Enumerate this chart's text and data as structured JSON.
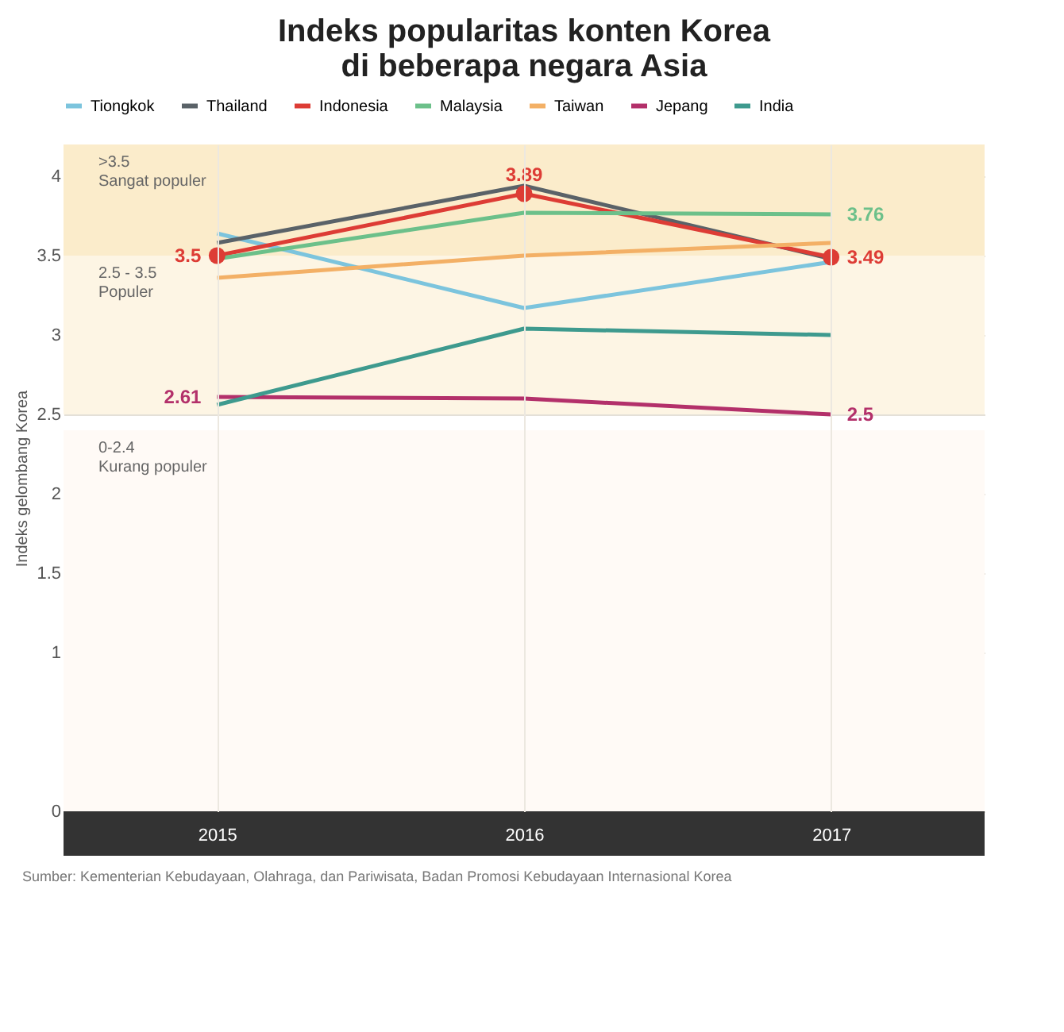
{
  "chart_data": {
    "type": "line",
    "title": "Indeks popularitas konten Korea\ndi beberapa negara Asia",
    "ylabel": "Indeks gelombang Korea",
    "categories": [
      "2015",
      "2016",
      "2017"
    ],
    "series": [
      {
        "name": "Tiongkok",
        "color": "#7cc4dd",
        "values": [
          3.64,
          3.17,
          3.46
        ]
      },
      {
        "name": "Thailand",
        "color": "#5a6268",
        "values": [
          3.58,
          3.94,
          3.48
        ]
      },
      {
        "name": "Indonesia",
        "color": "#dd3c35",
        "values": [
          3.5,
          3.89,
          3.49
        ],
        "marker": "circle",
        "value_labels": [
          "3.5",
          "3.89",
          "3.49"
        ]
      },
      {
        "name": "Malaysia",
        "color": "#6cc08a",
        "values": [
          3.48,
          3.77,
          3.76
        ],
        "value_labels": [
          null,
          null,
          "3.76"
        ]
      },
      {
        "name": "Taiwan",
        "color": "#f3b066",
        "values": [
          3.36,
          3.5,
          3.58
        ]
      },
      {
        "name": "Jepang",
        "color": "#b3306a",
        "values": [
          2.61,
          2.6,
          2.5
        ],
        "value_labels": [
          "2.61",
          null,
          "2.5"
        ]
      },
      {
        "name": "India",
        "color": "#3e9a8e",
        "values": [
          2.56,
          3.04,
          3.0
        ]
      }
    ],
    "ylim": [
      0,
      4.2
    ],
    "yticks": [
      0,
      1,
      1.5,
      2,
      2.5,
      3,
      3.5,
      4
    ],
    "grid": true,
    "legend": "top",
    "bands": [
      {
        "axis": "y",
        "from": 3.5,
        "to": 4.2,
        "label": ">3.5\nSangat populer",
        "color": "#fbeccb"
      },
      {
        "axis": "y",
        "from": 2.5,
        "to": 3.5,
        "label": "2.5 - 3.5\nPopuler",
        "color": "#fdf5e4"
      },
      {
        "axis": "y",
        "from": 0,
        "to": 2.4,
        "label": "0-2.4\nKurang populer",
        "color": "#fffaf6"
      }
    ],
    "annotations": [
      "Sumber: Kementerian Kebudayaan, Olahraga, dan Pariwisata, Badan Promosi Kebudayaan Internasional Korea"
    ]
  }
}
